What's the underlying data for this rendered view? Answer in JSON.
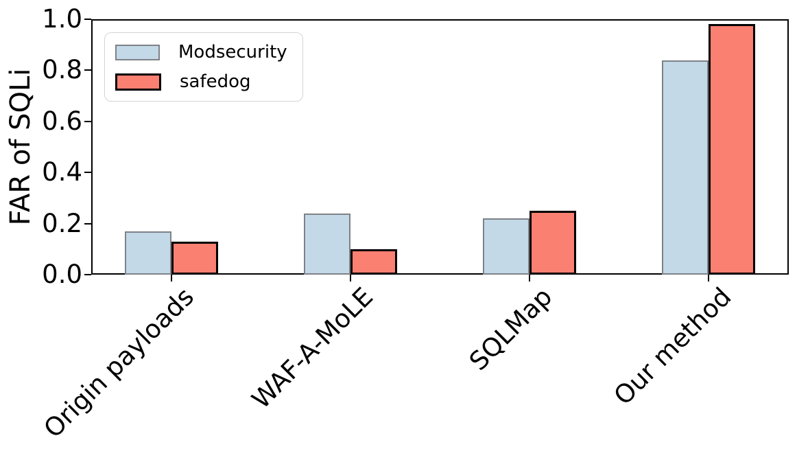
{
  "chart_data": {
    "type": "bar",
    "title": "",
    "xlabel": "",
    "ylabel": "FAR of SQLi",
    "categories": [
      "Origin payloads",
      "WAF-A-MoLE",
      "SQLMap",
      "Our method"
    ],
    "series": [
      {
        "name": "Modsecurity",
        "values": [
          0.17,
          0.24,
          0.22,
          0.84
        ],
        "fill": "#c3d9e8",
        "edge": "#7d8287"
      },
      {
        "name": "safedog",
        "values": [
          0.13,
          0.1,
          0.25,
          0.98
        ],
        "fill": "#fa8072",
        "edge": "#000000"
      }
    ],
    "ylim": [
      0,
      1.0
    ],
    "yticks": [
      "0.0",
      "0.2",
      "0.4",
      "0.6",
      "0.8",
      "1.0"
    ],
    "grid": false,
    "legend_position": "upper-left",
    "axis_color": "#000000",
    "background": "#ffffff"
  }
}
